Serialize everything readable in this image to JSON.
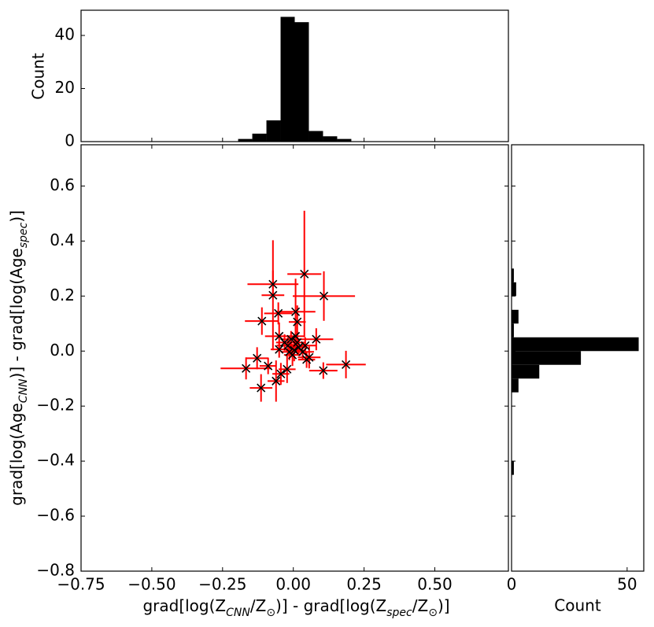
{
  "chart_data": [
    {
      "type": "scatter",
      "xlabel": [
        {
          "text": "grad[log(Z"
        },
        {
          "text": "CNN",
          "sub": true
        },
        {
          "text": "/Z"
        },
        {
          "text": "⊙",
          "sub": true
        },
        {
          "text": ")] - grad[log(Z"
        },
        {
          "text": "spec",
          "sub": true
        },
        {
          "text": "/Z"
        },
        {
          "text": "⊙",
          "sub": true
        },
        {
          "text": ")]"
        }
      ],
      "ylabel": [
        {
          "text": "grad[log(Age"
        },
        {
          "text": "CNN",
          "sub": true
        },
        {
          "text": ")] - grad[log(Age"
        },
        {
          "text": "spec",
          "sub": true
        },
        {
          "text": ")]"
        }
      ],
      "xlim": [
        -0.75,
        0.76
      ],
      "ylim": [
        -0.8,
        0.75
      ],
      "xticks": [
        {
          "value": -0.75,
          "label": "−0.75"
        },
        {
          "value": -0.5,
          "label": "−0.50"
        },
        {
          "value": -0.25,
          "label": "−0.25"
        },
        {
          "value": 0,
          "label": "0.00"
        },
        {
          "value": 0.25,
          "label": "0.25"
        },
        {
          "value": 0.5,
          "label": "0.50"
        }
      ],
      "yticks": [
        {
          "value": -0.8,
          "label": "−0.8"
        },
        {
          "value": -0.6,
          "label": "−0.6"
        },
        {
          "value": -0.4,
          "label": "−0.4"
        },
        {
          "value": -0.2,
          "label": "−0.2"
        },
        {
          "value": 0,
          "label": "0.0"
        },
        {
          "value": 0.2,
          "label": "0.2"
        },
        {
          "value": 0.4,
          "label": "0.4"
        },
        {
          "value": 0.6,
          "label": "0.6"
        }
      ],
      "series": [
        {
          "color": "#ff0000",
          "marker_color": "#000000",
          "x": [
            0.039,
            -0.072,
            0.108,
            -0.072,
            -0.053,
            0.008,
            -0.111,
            0.014,
            -0.05,
            0.081,
            -0.05,
            -0.167,
            -0.128,
            -0.089,
            -0.114,
            -0.061,
            -0.044,
            -0.022,
            0.106,
            0.186,
            0.056,
            -0.008,
            0.014,
            -0.019,
            0.019,
            0.003,
            0.033,
            -0.031,
            -0.003,
            0.042,
            -0.014,
            0.008,
            0.047
          ],
          "y": [
            0.28,
            0.243,
            0.2,
            0.203,
            0.137,
            0.143,
            0.109,
            0.106,
            0.054,
            0.043,
            0.006,
            -0.063,
            -0.026,
            -0.054,
            -0.134,
            -0.109,
            -0.083,
            -0.066,
            -0.071,
            -0.049,
            -0.023,
            0.043,
            0.031,
            0.02,
            0.014,
            0.003,
            -0.003,
            0.031,
            -0.014,
            0.02,
            -0.003,
            0.054,
            -0.031
          ],
          "xerr": [
            0.06,
            0.09,
            0.11,
            0.04,
            0.05,
            0.07,
            0.06,
            0.03,
            0.05,
            0.06,
            0.03,
            0.09,
            0.04,
            0.03,
            0.04,
            0.03,
            0.03,
            0.03,
            0.05,
            0.07,
            0.04,
            0.03,
            0.03,
            0.04,
            0.03,
            0.03,
            0.04,
            0.03,
            0.03,
            0.04,
            0.03,
            0.03,
            0.03
          ],
          "yerr": [
            0.23,
            0.05,
            0.09,
            0.2,
            0.04,
            0.12,
            0.05,
            0.06,
            0.05,
            0.04,
            0.03,
            0.04,
            0.04,
            0.03,
            0.05,
            0.075,
            0.04,
            0.05,
            0.03,
            0.05,
            0.04,
            0.03,
            0.04,
            0.03,
            0.03,
            0.04,
            0.03,
            0.03,
            0.04,
            0.03,
            0.03,
            0.04,
            0.03
          ]
        }
      ]
    },
    {
      "type": "histogram",
      "ylabel": "Count",
      "color": "#000000",
      "xlim": [
        -0.75,
        0.76
      ],
      "ylim": [
        0,
        49.5
      ],
      "yticks": [
        0,
        20,
        40
      ],
      "bins": [
        -0.195,
        -0.145,
        -0.095,
        -0.045,
        0.005,
        0.055,
        0.105,
        0.155,
        0.205
      ],
      "values": [
        1,
        3,
        8,
        47,
        45,
        4,
        2,
        1
      ]
    },
    {
      "type": "histogram-horizontal",
      "xlabel": "Count",
      "color": "#000000",
      "xlim": [
        0,
        57.2
      ],
      "ylim": [
        -0.8,
        0.75
      ],
      "xticks": [
        0,
        50
      ],
      "bins": [
        -0.45,
        -0.4,
        -0.35,
        -0.3,
        -0.25,
        -0.2,
        -0.15,
        -0.1,
        -0.05,
        0,
        0.05,
        0.1,
        0.15,
        0.2,
        0.25,
        0.3
      ],
      "values": [
        1,
        0,
        0,
        0,
        0,
        0,
        3,
        12,
        30,
        55,
        1,
        3,
        0,
        2,
        1
      ]
    }
  ]
}
